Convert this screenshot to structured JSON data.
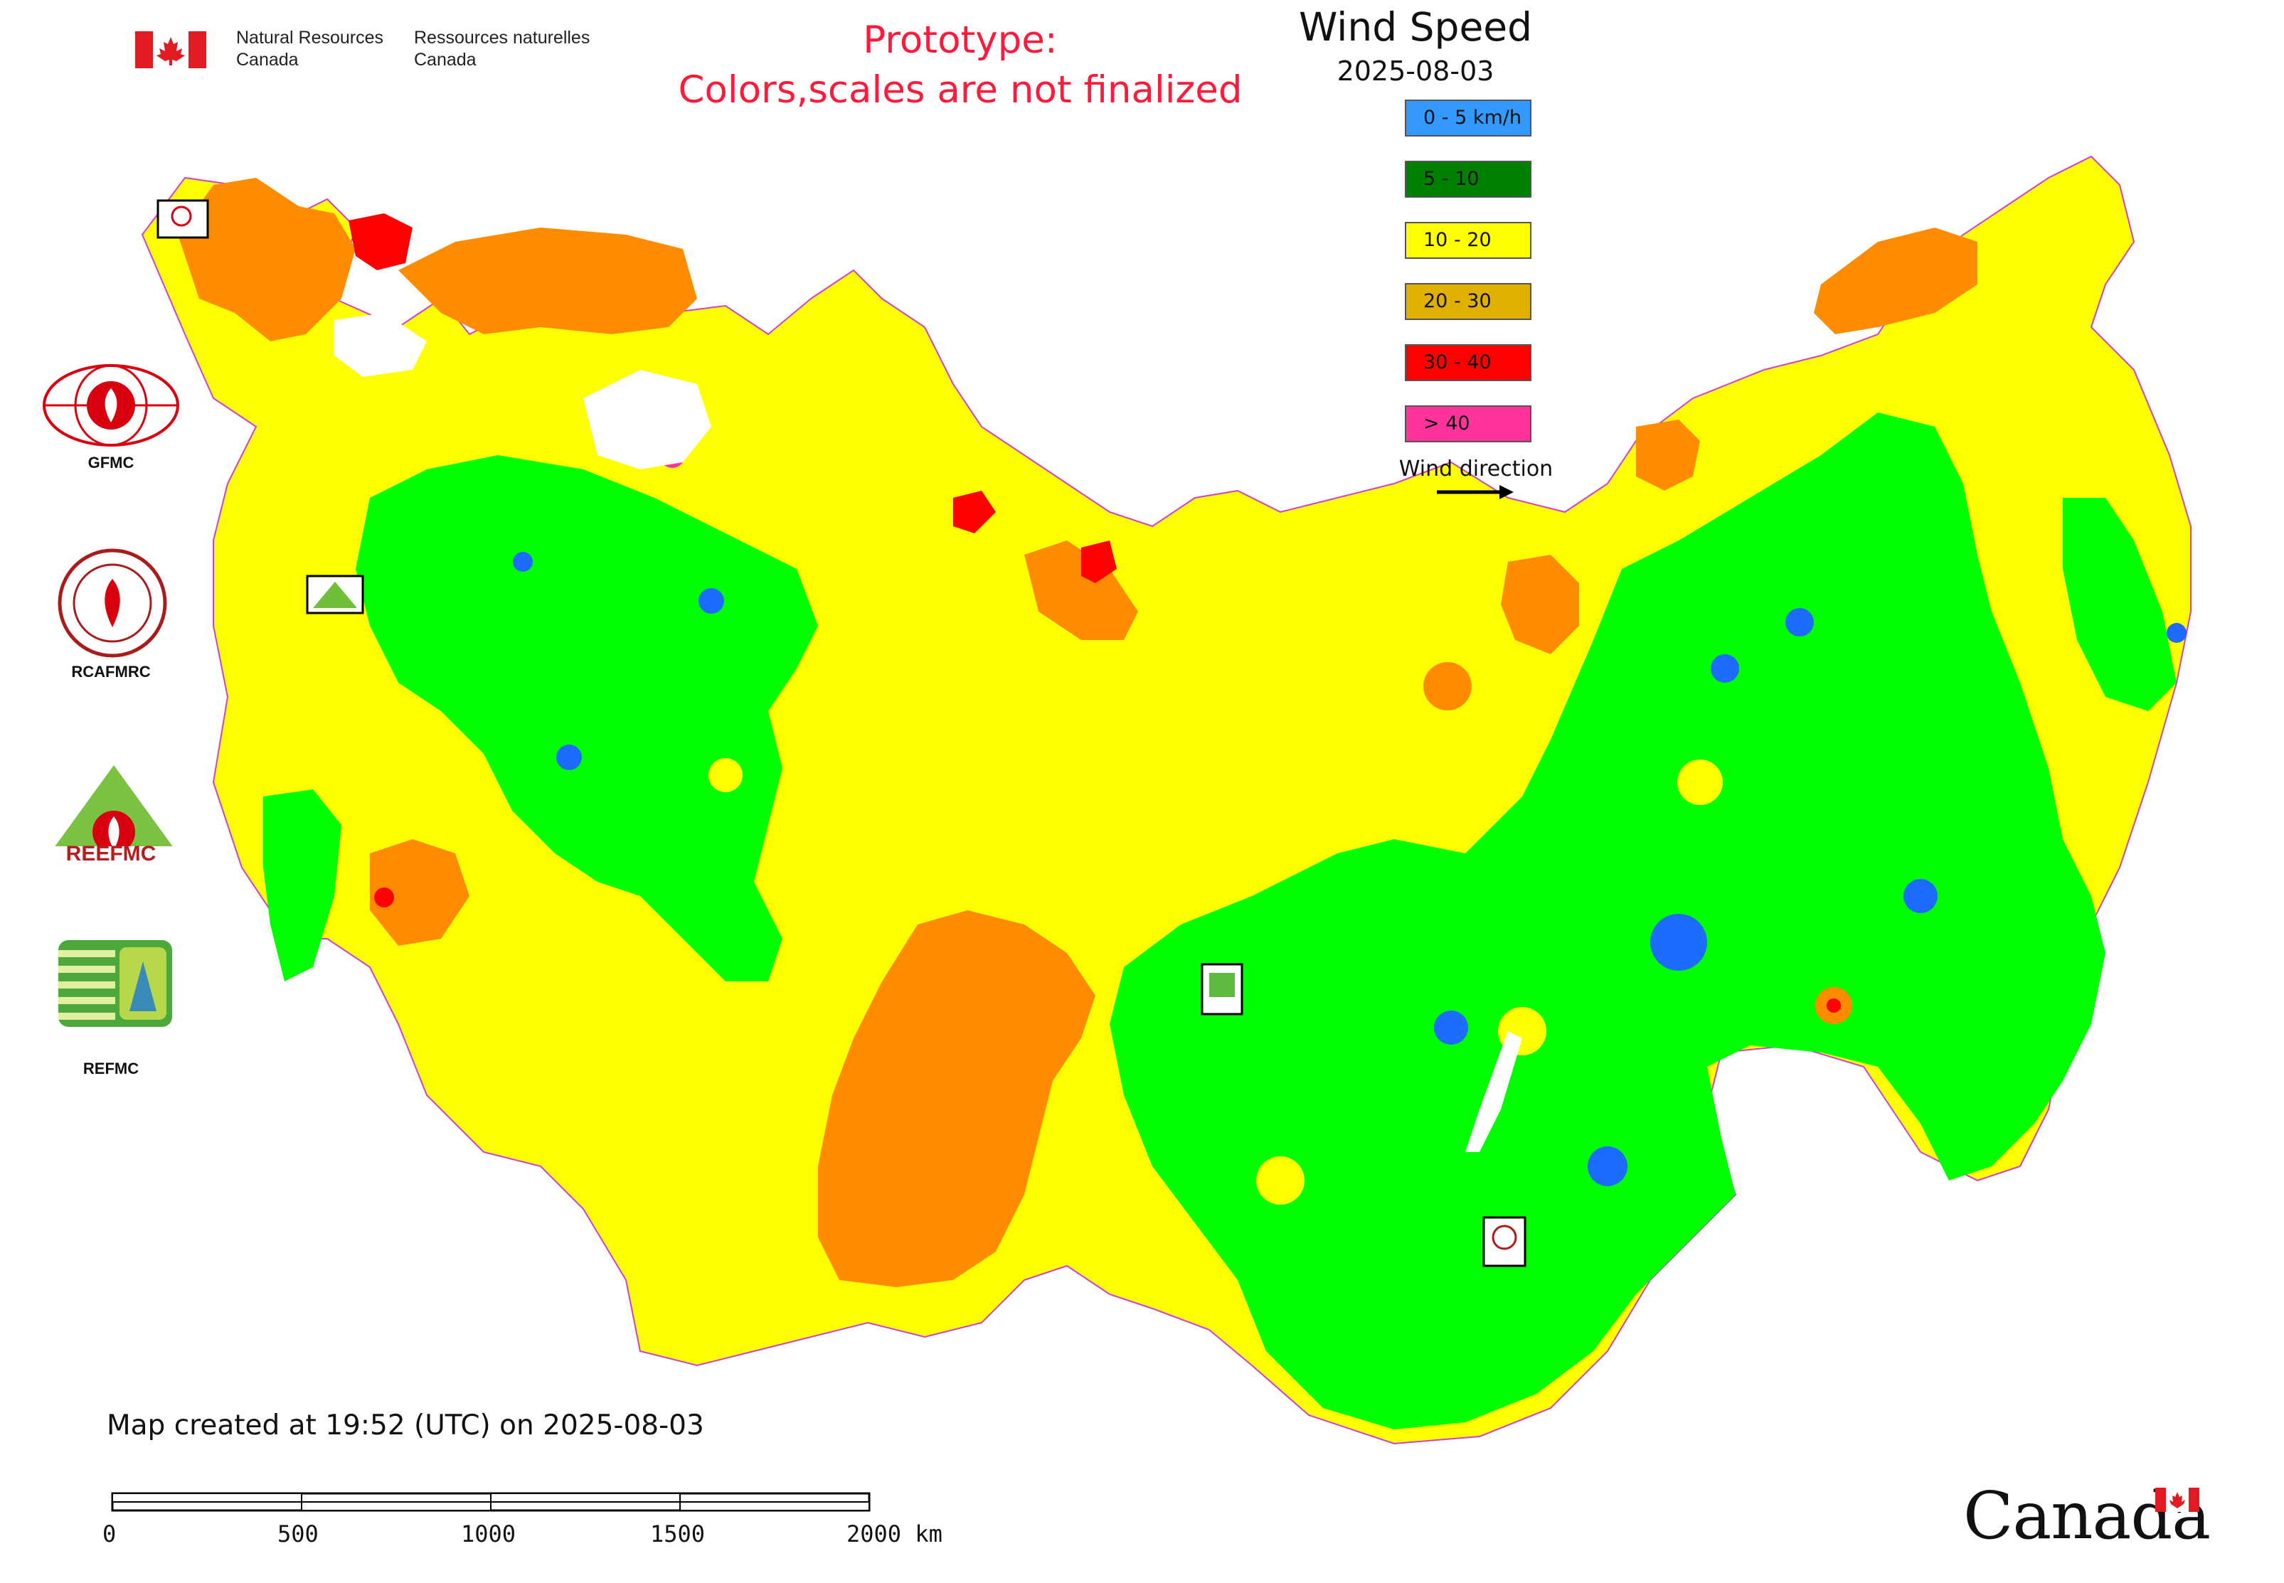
{
  "header": {
    "nrc_en_line1": "Natural Resources",
    "nrc_en_line2": "Canada",
    "nrc_fr_line1": "Ressources naturelles",
    "nrc_fr_line2": "Canada",
    "prototype_line1": "Prototype:",
    "prototype_line2": "Colors,scales are not finalized"
  },
  "map": {
    "title": "Wind Speed",
    "date": "2025-08-03",
    "legend": [
      {
        "label": "0 - 5 km/h",
        "color": "#3399ff"
      },
      {
        "label": "5 - 10",
        "color": "#008000"
      },
      {
        "label": "10 - 20",
        "color": "#ffff00"
      },
      {
        "label": "20 - 30",
        "color": "#e0b000"
      },
      {
        "label": "30 - 40",
        "color": "#ff0000"
      },
      {
        "label": "> 40",
        "color": "#ff3399"
      }
    ],
    "wind_direction_label": "Wind direction",
    "region_colors": {
      "yellow": "#ffff00",
      "green": "#00ff00",
      "orange": "#ff8c00",
      "blue": "#1e6bff",
      "red": "#ff0000"
    },
    "markers": [
      {
        "label": "GFMC",
        "icon": "gfmc-logo-icon"
      },
      {
        "label": "REEFMC",
        "icon": "reefmc-logo-icon"
      },
      {
        "label": "REFMC",
        "icon": "refmc-logo-icon"
      },
      {
        "label": "RCAFMRC",
        "icon": "rcafmrc-logo-icon"
      }
    ]
  },
  "side_logos": [
    {
      "label": "GFMC",
      "icon": "gfmc-logo-icon"
    },
    {
      "label": "RCAFMRC",
      "icon": "rcafmrc-logo-icon"
    },
    {
      "label": "REEFMC",
      "icon": "reefmc-logo-icon"
    },
    {
      "label": "REFMC",
      "icon": "refmc-logo-icon"
    }
  ],
  "footer": {
    "created": "Map created at 19:52 (UTC) on 2025-08-03",
    "scale_labels": [
      "0",
      "500",
      "1000",
      "1500",
      "2000 km"
    ],
    "wordmark": "Canada"
  }
}
